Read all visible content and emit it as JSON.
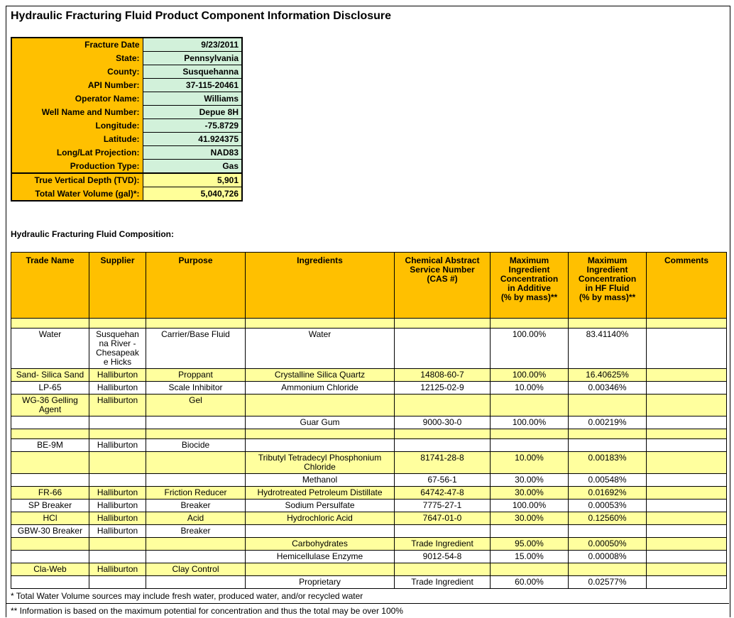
{
  "page": {
    "title": "Hydraulic Fracturing Fluid Product Component Information Disclosure"
  },
  "well_info": {
    "fields": [
      {
        "label": "Fracture Date",
        "value": "9/23/2011",
        "highlight": "green"
      },
      {
        "label": "State:",
        "value": "Pennsylvania",
        "highlight": "green"
      },
      {
        "label": "County:",
        "value": "Susquehanna",
        "highlight": "green"
      },
      {
        "label": "API Number:",
        "value": "37-115-20461",
        "highlight": "green"
      },
      {
        "label": "Operator Name:",
        "value": "Williams",
        "highlight": "green"
      },
      {
        "label": "Well Name and Number:",
        "value": "Depue 8H",
        "highlight": "green"
      },
      {
        "label": "Longitude:",
        "value": "-75.8729",
        "highlight": "green"
      },
      {
        "label": "Latitude:",
        "value": "41.924375",
        "highlight": "green"
      },
      {
        "label": "Long/Lat Projection:",
        "value": "NAD83",
        "highlight": "green"
      },
      {
        "label": "Production Type:",
        "value": "Gas",
        "highlight": "green"
      },
      {
        "label": "True Vertical Depth (TVD):",
        "value": "5,901",
        "highlight": "yellow",
        "section_start": true
      },
      {
        "label": "Total Water Volume (gal)*:",
        "value": "5,040,726",
        "highlight": "yellow"
      }
    ]
  },
  "composition": {
    "heading": "Hydraulic Fracturing Fluid Composition:",
    "columns": [
      "Trade Name",
      "Supplier",
      "Purpose",
      "Ingredients",
      "Chemical Abstract\nService Number\n(CAS #)",
      "Maximum\nIngredient\nConcentration\nin Additive\n(% by mass)**",
      "Maximum\nIngredient\nConcentration\nin HF Fluid\n(% by mass)**",
      "Comments"
    ],
    "rows": [
      {
        "shade": "yellow",
        "cells": [
          "",
          "",
          "",
          "",
          "",
          "",
          "",
          ""
        ]
      },
      {
        "shade": "white",
        "cells": [
          "Water",
          "Susquehanna River - Chesapeake Hicks",
          "Carrier/Base Fluid",
          "Water",
          "",
          "100.00%",
          "83.41140%",
          ""
        ]
      },
      {
        "shade": "yellow",
        "cells": [
          "Sand- Silica Sand",
          "Halliburton",
          "Proppant",
          "Crystalline Silica Quartz",
          "14808-60-7",
          "100.00%",
          "16.40625%",
          ""
        ]
      },
      {
        "shade": "white",
        "cells": [
          "LP-65",
          "Halliburton",
          "Scale Inhibitor",
          "Ammonium Chloride",
          "12125-02-9",
          "10.00%",
          "0.00346%",
          ""
        ]
      },
      {
        "shade": "yellow",
        "cells": [
          "WG-36 Gelling Agent",
          "Halliburton",
          "Gel",
          "",
          "",
          "",
          "",
          ""
        ]
      },
      {
        "shade": "white",
        "cells": [
          "",
          "",
          "",
          "Guar Gum",
          "9000-30-0",
          "100.00%",
          "0.00219%",
          ""
        ]
      },
      {
        "shade": "yellow",
        "cells": [
          "",
          "",
          "",
          "",
          "",
          "",
          "",
          ""
        ]
      },
      {
        "shade": "white",
        "cells": [
          "BE-9M",
          "Halliburton",
          "Biocide",
          "",
          "",
          "",
          "",
          ""
        ]
      },
      {
        "shade": "yellow",
        "cells": [
          "",
          "",
          "",
          "Tributyl Tetradecyl Phosphonium Chloride",
          "81741-28-8",
          "10.00%",
          "0.00183%",
          ""
        ]
      },
      {
        "shade": "white",
        "cells": [
          "",
          "",
          "",
          "Methanol",
          "67-56-1",
          "30.00%",
          "0.00548%",
          ""
        ]
      },
      {
        "shade": "yellow",
        "cells": [
          "FR-66",
          "Halliburton",
          "Friction Reducer",
          "Hydrotreated Petroleum Distillate",
          "64742-47-8",
          "30.00%",
          "0.01692%",
          ""
        ]
      },
      {
        "shade": "white",
        "cells": [
          "SP Breaker",
          "Halliburton",
          "Breaker",
          "Sodium Persulfate",
          "7775-27-1",
          "100.00%",
          "0.00053%",
          ""
        ]
      },
      {
        "shade": "yellow",
        "cells": [
          "HCl",
          "Halliburton",
          "Acid",
          "Hydrochloric Acid",
          "7647-01-0",
          "30.00%",
          "0.12560%",
          ""
        ]
      },
      {
        "shade": "white",
        "cells": [
          "GBW-30 Breaker",
          "Halliburton",
          "Breaker",
          "",
          "",
          "",
          "",
          ""
        ]
      },
      {
        "shade": "yellow",
        "cells": [
          "",
          "",
          "",
          "Carbohydrates",
          "Trade Ingredient",
          "95.00%",
          "0.00050%",
          ""
        ]
      },
      {
        "shade": "white",
        "cells": [
          "",
          "",
          "",
          "Hemicellulase Enzyme",
          "9012-54-8",
          "15.00%",
          "0.00008%",
          ""
        ]
      },
      {
        "shade": "yellow",
        "cells": [
          "Cla-Web",
          "Halliburton",
          "Clay Control",
          "",
          "",
          "",
          "",
          ""
        ]
      },
      {
        "shade": "white",
        "cells": [
          "",
          "",
          "",
          "Proprietary",
          "Trade Ingredient",
          "60.00%",
          "0.02577%",
          ""
        ]
      }
    ]
  },
  "footnotes": [
    "* Total Water Volume sources may include fresh water, produced water, and/or recycled water",
    "** Information is based on the maximum potential for concentration and thus the total may be over 100%"
  ],
  "colors": {
    "header_orange": "#FFC000",
    "row_yellow": "#FFFF9E",
    "value_green": "#D2F1DA",
    "value_yellow": "#FFFF99",
    "border": "#000000"
  }
}
